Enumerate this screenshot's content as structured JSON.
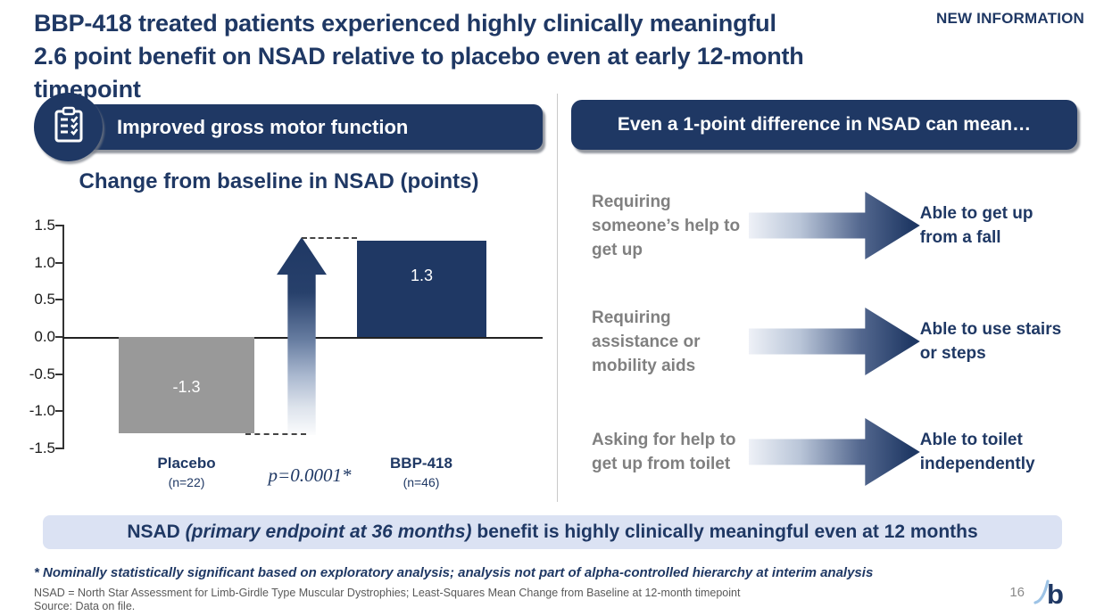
{
  "header": {
    "title_line1": "BBP-418 treated patients experienced highly clinically meaningful",
    "title_line2": "2.6 point benefit on NSAD relative to placebo even at early 12-month timepoint",
    "badge": "NEW INFORMATION"
  },
  "left_panel": {
    "header": "Improved gross motor function",
    "icon": "clipboard-checklist-icon",
    "chart_title": "Change from baseline in NSAD (points)"
  },
  "chart_data": {
    "type": "bar",
    "title": "Change from baseline in NSAD (points)",
    "categories": [
      "Placebo",
      "BBP-418"
    ],
    "subcategories": [
      "(n=22)",
      "(n=46)"
    ],
    "values": [
      -1.3,
      1.3
    ],
    "data_labels": [
      "-1.3",
      "1.3"
    ],
    "bar_colors": [
      "#999999",
      "#1f3864"
    ],
    "ylim": [
      -1.5,
      1.5
    ],
    "yticks": [
      "1.5",
      "1.0",
      "0.5",
      "0.0",
      "-0.5",
      "-1.0",
      "-1.5"
    ],
    "annotation": "p=0.0001*",
    "difference_points": 2.6,
    "grid": false,
    "legend": false
  },
  "right_panel": {
    "header": "Even a 1-point difference in NSAD can mean…",
    "rows": [
      {
        "from": "Requiring someone’s help to get up",
        "to": "Able to get up from a fall"
      },
      {
        "from": "Requiring assistance or mobility aids",
        "to": "Able to use stairs or steps"
      },
      {
        "from": "Asking for help to get up from toilet",
        "to": "Able to toilet independently"
      }
    ]
  },
  "banner": {
    "prefix": "NSAD ",
    "italic": "(primary endpoint at 36 months)",
    "suffix": " benefit is highly clinically meaningful even at 12 months"
  },
  "footnotes": {
    "asterisk": "* Nominally statistically significant based on exploratory analysis; analysis not part of alpha-controlled hierarchy at interim analysis",
    "definition": "NSAD = North Star Assessment for Limb-Girdle Type Muscular Dystrophies; Least-Squares Mean Change from Baseline at 12-month timepoint",
    "source": "Source: Data on file."
  },
  "footer": {
    "page_number": "16",
    "logo": "bridgebio-logo"
  },
  "colors": {
    "navy": "#1f3864",
    "gray_bar": "#999999",
    "red": "#c00000",
    "banner_bg": "#dbe2f3",
    "gray_text": "#808080",
    "logo_swoosh": "#9dc3e6"
  }
}
